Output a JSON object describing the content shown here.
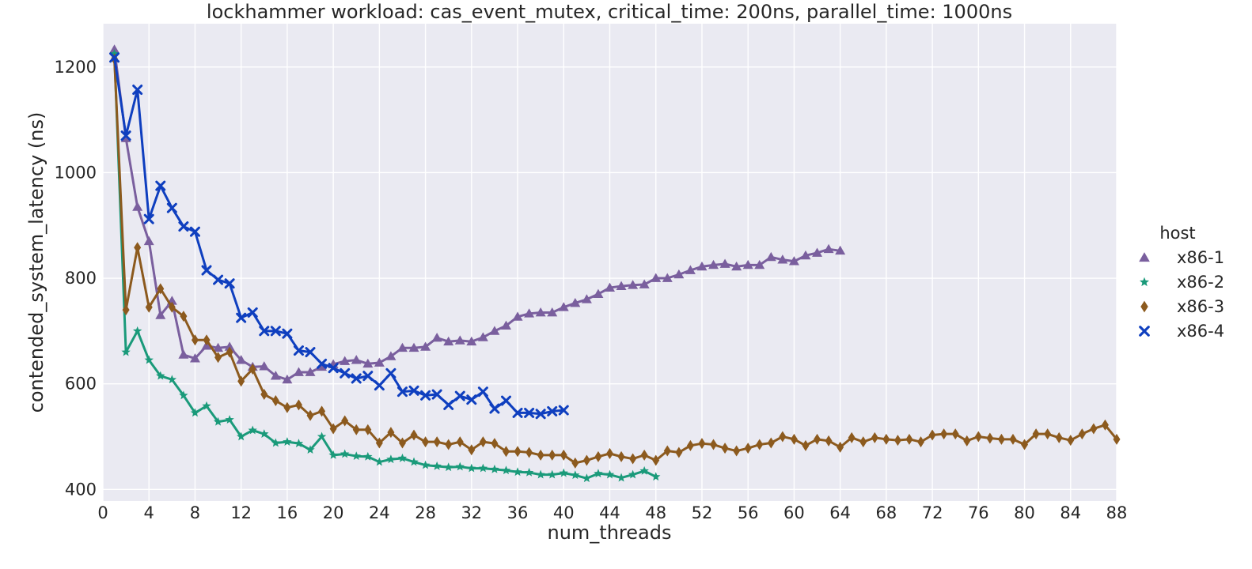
{
  "chart_data": {
    "type": "line",
    "title": "lockhammer workload: cas_event_mutex, critical_time: 200ns, parallel_time: 1000ns",
    "xlabel": "num_threads",
    "ylabel": "contended_system_latency (ns)",
    "xlim": [
      0,
      88
    ],
    "ylim": [
      378,
      1282
    ],
    "xticks": [
      0,
      4,
      8,
      12,
      16,
      20,
      24,
      28,
      32,
      36,
      40,
      44,
      48,
      52,
      56,
      60,
      64,
      68,
      72,
      76,
      80,
      84,
      88
    ],
    "yticks": [
      400,
      600,
      800,
      1000,
      1200
    ],
    "grid": true,
    "background": "#eaeaf2",
    "legend": {
      "title": "host",
      "position": "right"
    },
    "series": [
      {
        "name": "x86-1",
        "color": "#7a5f9e",
        "marker": "triangle",
        "x": [
          1,
          2,
          3,
          4,
          5,
          6,
          7,
          8,
          9,
          10,
          11,
          12,
          13,
          14,
          15,
          16,
          17,
          18,
          19,
          20,
          21,
          22,
          23,
          24,
          25,
          26,
          27,
          28,
          29,
          30,
          31,
          32,
          33,
          34,
          35,
          36,
          37,
          38,
          39,
          40,
          41,
          42,
          43,
          44,
          45,
          46,
          47,
          48,
          49,
          50,
          51,
          52,
          53,
          54,
          55,
          56,
          57,
          58,
          59,
          60,
          61,
          62,
          63,
          64
        ],
        "y": [
          1233,
          1065,
          935,
          870,
          730,
          757,
          655,
          648,
          672,
          668,
          670,
          645,
          632,
          633,
          615,
          608,
          622,
          622,
          632,
          637,
          643,
          645,
          638,
          640,
          652,
          668,
          668,
          670,
          687,
          680,
          682,
          680,
          688,
          700,
          710,
          727,
          733,
          735,
          735,
          745,
          753,
          760,
          770,
          782,
          785,
          787,
          788,
          800,
          800,
          807,
          815,
          822,
          825,
          827,
          822,
          825,
          825,
          840,
          835,
          832,
          843,
          848,
          855,
          852
        ]
      },
      {
        "name": "x86-2",
        "color": "#1a9a7a",
        "marker": "star",
        "x": [
          1,
          2,
          3,
          4,
          5,
          6,
          7,
          8,
          9,
          10,
          11,
          12,
          13,
          14,
          15,
          16,
          17,
          18,
          19,
          20,
          21,
          22,
          23,
          24,
          25,
          26,
          27,
          28,
          29,
          30,
          31,
          32,
          33,
          34,
          35,
          36,
          37,
          38,
          39,
          40,
          41,
          42,
          43,
          44,
          45,
          46,
          47,
          48
        ],
        "y": [
          1225,
          660,
          700,
          645,
          615,
          608,
          578,
          545,
          558,
          528,
          532,
          500,
          512,
          505,
          488,
          490,
          487,
          475,
          500,
          465,
          467,
          463,
          462,
          452,
          457,
          459,
          452,
          446,
          444,
          442,
          443,
          440,
          440,
          438,
          436,
          433,
          432,
          428,
          428,
          431,
          427,
          421,
          430,
          428,
          422,
          428,
          435,
          424
        ]
      },
      {
        "name": "x86-3",
        "color": "#8c5a1e",
        "marker": "diamond",
        "x": [
          1,
          2,
          3,
          4,
          5,
          6,
          7,
          8,
          9,
          10,
          11,
          12,
          13,
          14,
          15,
          16,
          17,
          18,
          19,
          20,
          21,
          22,
          23,
          24,
          25,
          26,
          27,
          28,
          29,
          30,
          31,
          32,
          33,
          34,
          35,
          36,
          37,
          38,
          39,
          40,
          41,
          42,
          43,
          44,
          45,
          46,
          47,
          48,
          49,
          50,
          51,
          52,
          53,
          54,
          55,
          56,
          57,
          58,
          59,
          60,
          61,
          62,
          63,
          64,
          65,
          66,
          67,
          68,
          69,
          70,
          71,
          72,
          73,
          74,
          75,
          76,
          77,
          78,
          79,
          80,
          81,
          82,
          83,
          84,
          85,
          86,
          87,
          88
        ],
        "y": [
          1215,
          740,
          858,
          745,
          780,
          745,
          728,
          683,
          683,
          650,
          660,
          605,
          628,
          580,
          568,
          555,
          560,
          540,
          548,
          515,
          530,
          513,
          513,
          488,
          508,
          488,
          503,
          490,
          490,
          485,
          490,
          475,
          490,
          487,
          472,
          472,
          470,
          465,
          465,
          465,
          450,
          455,
          462,
          468,
          462,
          458,
          465,
          455,
          473,
          470,
          483,
          487,
          485,
          478,
          473,
          478,
          485,
          488,
          500,
          495,
          483,
          495,
          492,
          480,
          498,
          490,
          498,
          495,
          493,
          495,
          490,
          503,
          505,
          505,
          492,
          500,
          497,
          495,
          495,
          485,
          505,
          505,
          498,
          493,
          505,
          515,
          522,
          495
        ]
      },
      {
        "name": "x86-4",
        "color": "#0f3fbf",
        "marker": "x",
        "x": [
          1,
          2,
          3,
          4,
          5,
          6,
          7,
          8,
          9,
          10,
          11,
          12,
          13,
          14,
          15,
          16,
          17,
          18,
          19,
          20,
          21,
          22,
          23,
          24,
          25,
          26,
          27,
          28,
          29,
          30,
          31,
          32,
          33,
          34,
          35,
          36,
          37,
          38,
          39,
          40
        ],
        "y": [
          1218,
          1070,
          1157,
          912,
          975,
          933,
          898,
          888,
          815,
          797,
          790,
          725,
          735,
          700,
          700,
          695,
          663,
          660,
          638,
          630,
          620,
          610,
          615,
          597,
          620,
          585,
          587,
          578,
          580,
          560,
          577,
          570,
          585,
          553,
          568,
          545,
          545,
          543,
          548,
          550
        ]
      }
    ]
  }
}
